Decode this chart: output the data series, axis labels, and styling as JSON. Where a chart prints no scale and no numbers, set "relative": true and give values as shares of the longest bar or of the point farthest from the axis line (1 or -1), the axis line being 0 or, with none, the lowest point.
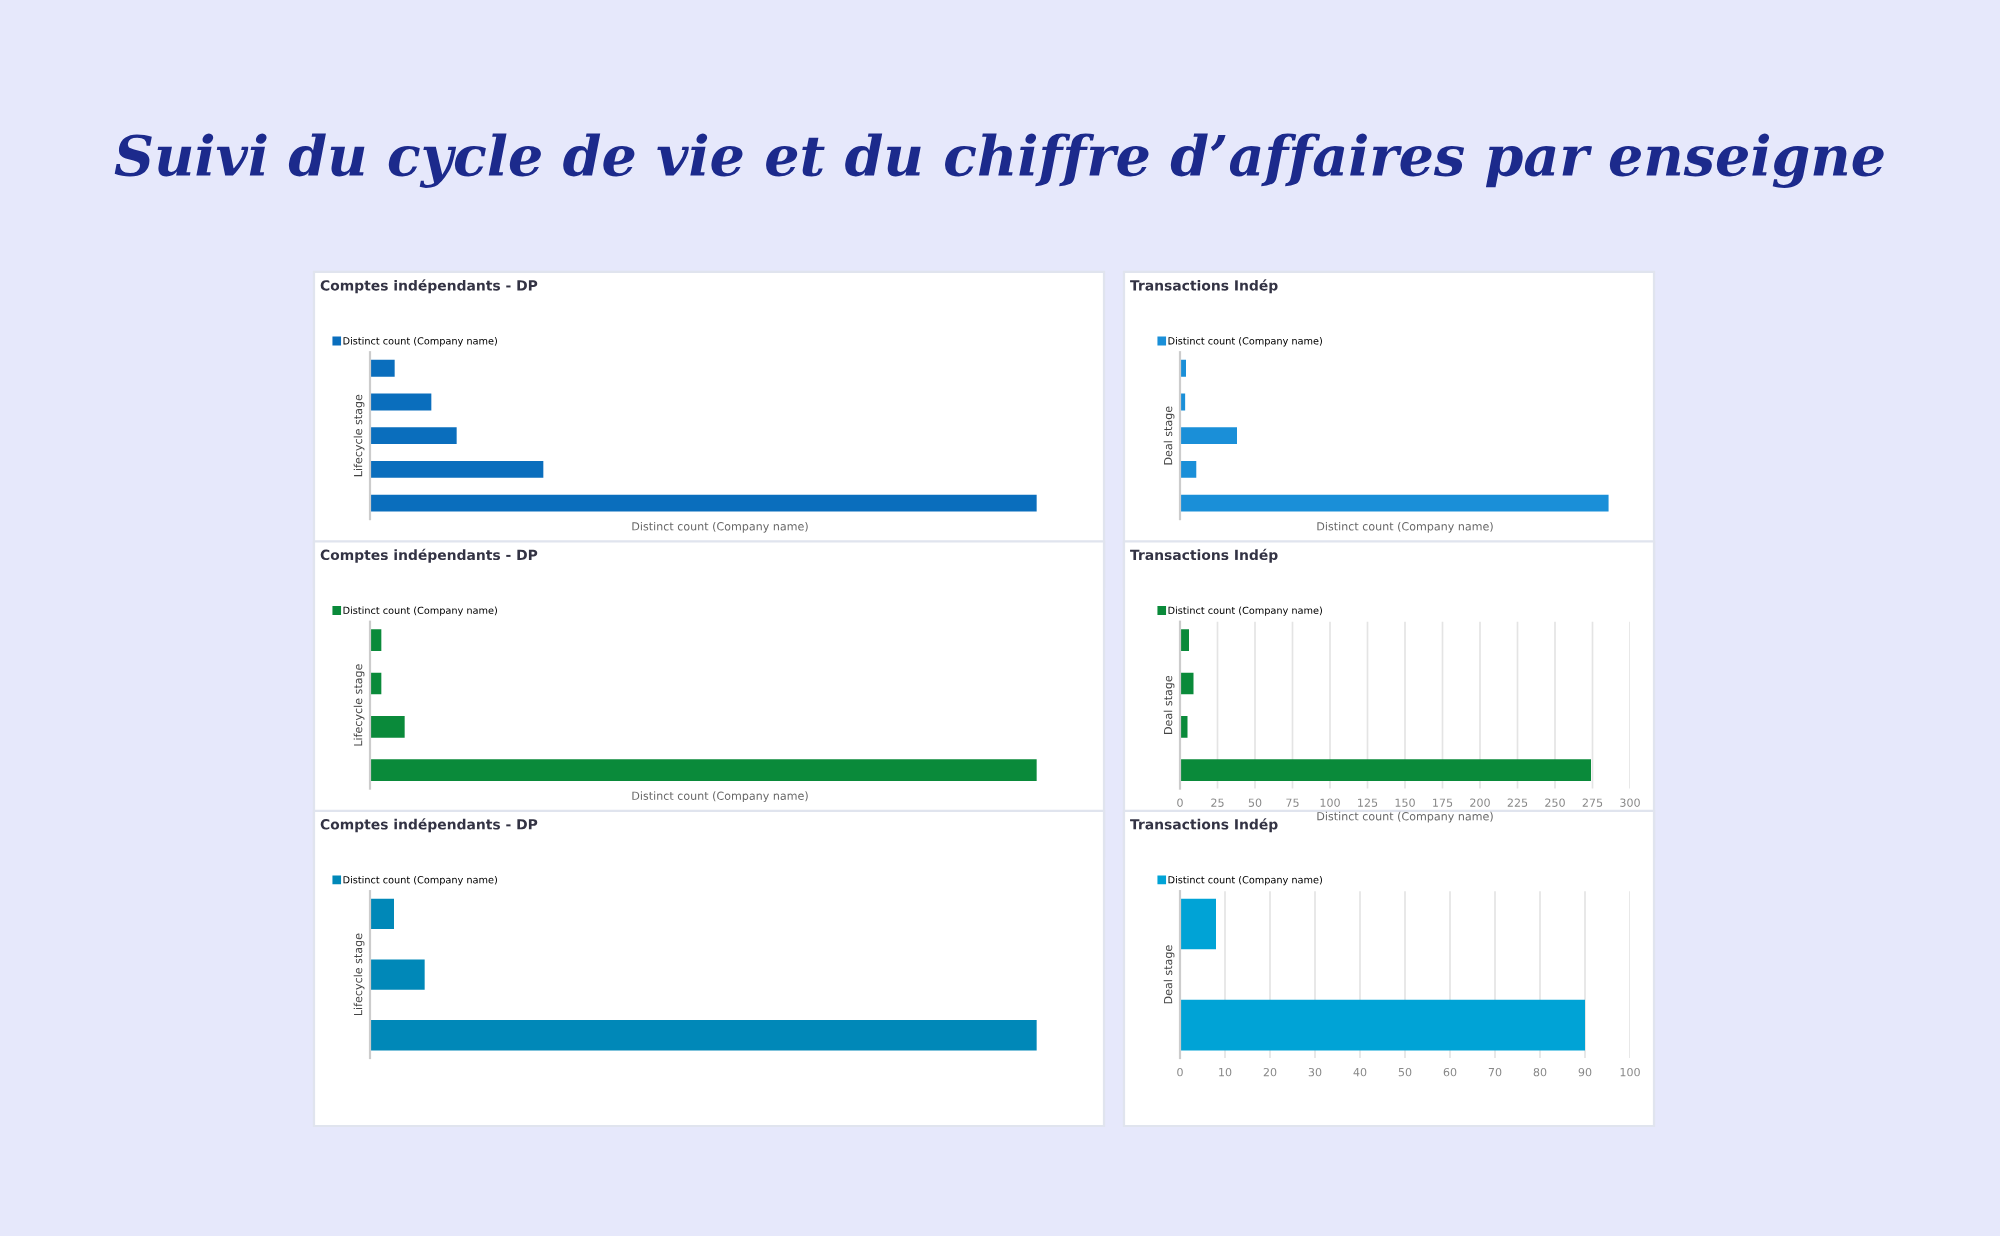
{
  "chart_data": [
    {
      "type": "other",
      "title": "Suivi du cycle de vie et du chiffre d’affaires par enseigne"
    },
    {
      "type": "bar",
      "orientation": "horizontal",
      "relative": true,
      "title": "Comptes indépendants - DP",
      "xlabel": "Distinct count (Company name)",
      "ylabel": "Lifecycle stage",
      "categories": [
        null,
        null,
        null,
        null,
        null
      ],
      "series": [
        {
          "name": "Distinct count (Company name)",
          "color": "#0a6ebd",
          "values": [
            0.037,
            0.092,
            0.13,
            0.26,
            1
          ]
        }
      ],
      "legend": "top left",
      "tick_labels": false
    },
    {
      "type": "bar",
      "orientation": "horizontal",
      "relative": true,
      "title": "Transactions Indép",
      "xlabel": "Distinct count (Company name)",
      "ylabel": "Deal stage",
      "categories": [
        null,
        null,
        null,
        null,
        null
      ],
      "series": [
        {
          "name": "Distinct count (Company name)",
          "color": "#1a8fd8",
          "values": [
            0.014,
            0.012,
            0.133,
            0.038,
            1
          ]
        }
      ],
      "legend": "top left",
      "tick_labels": false
    },
    {
      "type": "bar",
      "orientation": "horizontal",
      "relative": true,
      "title": "Comptes indépendants - DP",
      "xlabel": "Distinct count (Company name)",
      "ylabel": "Lifecycle stage",
      "categories": [
        null,
        null,
        null,
        null
      ],
      "series": [
        {
          "name": "Distinct count (Company name)",
          "color": "#0a8a3a",
          "values": [
            0.017,
            0.017,
            0.052,
            1
          ]
        }
      ],
      "legend": "top left",
      "tick_labels": false
    },
    {
      "type": "bar",
      "orientation": "horizontal",
      "title": "Transactions Indép",
      "xlabel": "Distinct count (Company name)",
      "ylabel": "Deal stage",
      "categories": [
        null,
        null,
        null,
        null
      ],
      "series": [
        {
          "name": "Distinct count (Company name)",
          "color": "#0a8a3a",
          "values": [
            6,
            9,
            5,
            274
          ]
        }
      ],
      "xlim": [
        0,
        300
      ],
      "xticks": [
        0,
        25,
        50,
        75,
        100,
        125,
        150,
        175,
        200,
        225,
        250,
        275,
        300
      ],
      "grid": "x",
      "legend": "top left",
      "tick_labels": "x"
    },
    {
      "type": "bar",
      "orientation": "horizontal",
      "relative": true,
      "title": "Comptes indépendants - DP",
      "ylabel": "Lifecycle stage",
      "categories": [
        null,
        null,
        null
      ],
      "series": [
        {
          "name": "Distinct count (Company name)",
          "color": "#0088b8",
          "values": [
            0.036,
            0.082,
            1
          ]
        }
      ],
      "legend": "top left",
      "tick_labels": false
    },
    {
      "type": "bar",
      "orientation": "horizontal",
      "title": "Transactions Indép",
      "ylabel": "Deal stage",
      "categories": [
        null,
        null
      ],
      "series": [
        {
          "name": "Distinct count (Company name)",
          "color": "#00a3d6",
          "values": [
            8,
            90
          ]
        }
      ],
      "xlim": [
        0,
        100
      ],
      "xticks": [
        0,
        10,
        20,
        30,
        40,
        50,
        60,
        70,
        80,
        90,
        100
      ],
      "grid": "x",
      "legend": "top left",
      "tick_labels": "x"
    }
  ]
}
